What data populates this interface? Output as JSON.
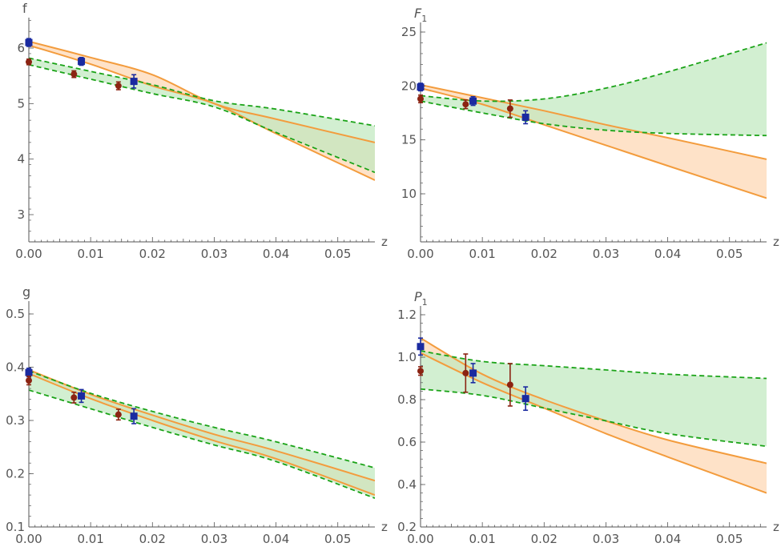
{
  "chart_data": [
    {
      "type": "line",
      "title": "",
      "ylabel": "f",
      "ylabel_italic": false,
      "xlabel": "z",
      "xlim": [
        0,
        0.056
      ],
      "ylim": [
        2.5,
        6.5
      ],
      "x_ticks": [
        "0.00",
        "0.01",
        "0.02",
        "0.03",
        "0.04",
        "0.05"
      ],
      "y_ticks": [
        3,
        4,
        5,
        6
      ],
      "y_tick_labels": [
        "3",
        "4",
        "5",
        "6"
      ],
      "bands": [
        {
          "style": "orange-solid",
          "upper": [
            [
              0,
              6.12
            ],
            [
              0.01,
              5.83
            ],
            [
              0.02,
              5.52
            ],
            [
              0.03,
              5.0
            ],
            [
              0.04,
              4.72
            ],
            [
              0.056,
              4.3
            ]
          ],
          "lower": [
            [
              0,
              6.05
            ],
            [
              0.01,
              5.71
            ],
            [
              0.02,
              5.32
            ],
            [
              0.03,
              5.0
            ],
            [
              0.04,
              4.46
            ],
            [
              0.056,
              3.62
            ]
          ]
        },
        {
          "style": "green-dashed",
          "upper": [
            [
              0,
              5.82
            ],
            [
              0.01,
              5.58
            ],
            [
              0.02,
              5.34
            ],
            [
              0.03,
              5.05
            ],
            [
              0.04,
              4.9
            ],
            [
              0.056,
              4.6
            ]
          ],
          "lower": [
            [
              0,
              5.7
            ],
            [
              0.01,
              5.44
            ],
            [
              0.02,
              5.18
            ],
            [
              0.03,
              4.94
            ],
            [
              0.04,
              4.48
            ],
            [
              0.056,
              3.76
            ]
          ]
        }
      ],
      "points": [
        {
          "marker": "square",
          "x": 0.0,
          "y": 6.1,
          "err": 0.07
        },
        {
          "marker": "square",
          "x": 0.0085,
          "y": 5.76,
          "err": 0.07
        },
        {
          "marker": "square",
          "x": 0.017,
          "y": 5.4,
          "err": 0.12
        },
        {
          "marker": "circle",
          "x": 0.0,
          "y": 5.75,
          "err": 0.05
        },
        {
          "marker": "circle",
          "x": 0.0073,
          "y": 5.53,
          "err": 0.06
        },
        {
          "marker": "circle",
          "x": 0.0145,
          "y": 5.32,
          "err": 0.07
        }
      ]
    },
    {
      "type": "line",
      "title": "",
      "ylabel": "F",
      "ylabel_sub": "1",
      "ylabel_italic": true,
      "xlabel": "z",
      "xlim": [
        0,
        0.056
      ],
      "ylim": [
        5,
        25.5
      ],
      "x_ticks": [
        "0.00",
        "0.01",
        "0.02",
        "0.03",
        "0.04",
        "0.05"
      ],
      "y_ticks": [
        10,
        15,
        20,
        25
      ],
      "y_tick_labels": [
        "10",
        "15",
        "20",
        "25"
      ],
      "bands": [
        {
          "style": "orange-solid",
          "upper": [
            [
              0,
              20.1
            ],
            [
              0.01,
              18.9
            ],
            [
              0.02,
              17.7
            ],
            [
              0.03,
              16.4
            ],
            [
              0.04,
              15.2
            ],
            [
              0.056,
              13.2
            ]
          ],
          "lower": [
            [
              0,
              19.8
            ],
            [
              0.01,
              18.3
            ],
            [
              0.02,
              16.4
            ],
            [
              0.03,
              14.5
            ],
            [
              0.04,
              12.6
            ],
            [
              0.056,
              9.6
            ]
          ]
        },
        {
          "style": "green-dashed",
          "upper": [
            [
              0,
              19.1
            ],
            [
              0.01,
              18.6
            ],
            [
              0.02,
              18.8
            ],
            [
              0.03,
              19.8
            ],
            [
              0.04,
              21.3
            ],
            [
              0.056,
              24.0
            ]
          ],
          "lower": [
            [
              0,
              18.6
            ],
            [
              0.01,
              17.5
            ],
            [
              0.02,
              16.5
            ],
            [
              0.03,
              15.9
            ],
            [
              0.04,
              15.6
            ],
            [
              0.056,
              15.4
            ]
          ]
        }
      ],
      "points": [
        {
          "marker": "square",
          "x": 0.0,
          "y": 19.9,
          "err": 0.35
        },
        {
          "marker": "square",
          "x": 0.0085,
          "y": 18.6,
          "err": 0.4
        },
        {
          "marker": "square",
          "x": 0.017,
          "y": 17.1,
          "err": 0.6
        },
        {
          "marker": "circle",
          "x": 0.0,
          "y": 18.8,
          "err": 0.35
        },
        {
          "marker": "circle",
          "x": 0.0073,
          "y": 18.3,
          "err": 0.4
        },
        {
          "marker": "circle",
          "x": 0.0145,
          "y": 17.9,
          "err": 0.8
        }
      ]
    },
    {
      "type": "line",
      "title": "",
      "ylabel": "g",
      "ylabel_italic": false,
      "xlabel": "z",
      "xlim": [
        0,
        0.056
      ],
      "ylim": [
        0.1,
        0.5
      ],
      "x_ticks": [
        "0.00",
        "0.01",
        "0.02",
        "0.03",
        "0.04",
        "0.05"
      ],
      "y_ticks": [
        0.1,
        0.2,
        0.3,
        0.4,
        0.5
      ],
      "y_tick_labels": [
        "0.1",
        "0.2",
        "0.3",
        "0.4",
        "0.5"
      ],
      "bands": [
        {
          "style": "orange-solid",
          "upper": [
            [
              0,
              0.395
            ],
            [
              0.01,
              0.349
            ],
            [
              0.02,
              0.31
            ],
            [
              0.03,
              0.274
            ],
            [
              0.04,
              0.243
            ],
            [
              0.056,
              0.187
            ]
          ],
          "lower": [
            [
              0,
              0.388
            ],
            [
              0.01,
              0.341
            ],
            [
              0.02,
              0.3
            ],
            [
              0.03,
              0.262
            ],
            [
              0.04,
              0.228
            ],
            [
              0.056,
              0.16
            ]
          ]
        },
        {
          "style": "green-dashed",
          "upper": [
            [
              0,
              0.393
            ],
            [
              0.01,
              0.351
            ],
            [
              0.02,
              0.317
            ],
            [
              0.03,
              0.287
            ],
            [
              0.04,
              0.26
            ],
            [
              0.056,
              0.211
            ]
          ],
          "lower": [
            [
              0,
              0.357
            ],
            [
              0.01,
              0.322
            ],
            [
              0.02,
              0.287
            ],
            [
              0.03,
              0.254
            ],
            [
              0.04,
              0.223
            ],
            [
              0.056,
              0.154
            ]
          ]
        }
      ],
      "points": [
        {
          "marker": "square",
          "x": 0.0,
          "y": 0.39,
          "err": 0.008
        },
        {
          "marker": "square",
          "x": 0.0085,
          "y": 0.346,
          "err": 0.012
        },
        {
          "marker": "square",
          "x": 0.017,
          "y": 0.308,
          "err": 0.014
        },
        {
          "marker": "circle",
          "x": 0.0,
          "y": 0.375,
          "err": 0.008
        },
        {
          "marker": "circle",
          "x": 0.0073,
          "y": 0.343,
          "err": 0.01
        },
        {
          "marker": "circle",
          "x": 0.0145,
          "y": 0.311,
          "err": 0.01
        }
      ]
    },
    {
      "type": "line",
      "title": "",
      "ylabel": "P",
      "ylabel_sub": "1",
      "ylabel_italic": true,
      "xlabel": "z",
      "xlim": [
        0,
        0.056
      ],
      "ylim": [
        0.2,
        1.2
      ],
      "x_ticks": [
        "0.00",
        "0.01",
        "0.02",
        "0.03",
        "0.04",
        "0.05"
      ],
      "y_ticks": [
        0.2,
        0.4,
        0.6,
        0.8,
        1.0,
        1.2
      ],
      "y_tick_labels": [
        "0.2",
        "0.4",
        "0.6",
        "0.8",
        "1.0",
        "1.2"
      ],
      "bands": [
        {
          "style": "orange-solid",
          "upper": [
            [
              0,
              1.09
            ],
            [
              0.01,
              0.92
            ],
            [
              0.02,
              0.8
            ],
            [
              0.03,
              0.7
            ],
            [
              0.04,
              0.61
            ],
            [
              0.056,
              0.5
            ]
          ],
          "lower": [
            [
              0,
              1.02
            ],
            [
              0.01,
              0.88
            ],
            [
              0.02,
              0.76
            ],
            [
              0.03,
              0.64
            ],
            [
              0.04,
              0.53
            ],
            [
              0.056,
              0.36
            ]
          ]
        },
        {
          "style": "green-dashed",
          "upper": [
            [
              0,
              1.03
            ],
            [
              0.01,
              0.98
            ],
            [
              0.02,
              0.96
            ],
            [
              0.03,
              0.94
            ],
            [
              0.04,
              0.92
            ],
            [
              0.056,
              0.9
            ]
          ],
          "lower": [
            [
              0,
              0.85
            ],
            [
              0.01,
              0.82
            ],
            [
              0.02,
              0.76
            ],
            [
              0.03,
              0.7
            ],
            [
              0.04,
              0.64
            ],
            [
              0.056,
              0.58
            ]
          ]
        }
      ],
      "points": [
        {
          "marker": "square",
          "x": 0.0,
          "y": 1.05,
          "err": 0.04
        },
        {
          "marker": "square",
          "x": 0.0085,
          "y": 0.925,
          "err": 0.045
        },
        {
          "marker": "square",
          "x": 0.017,
          "y": 0.805,
          "err": 0.055
        },
        {
          "marker": "circle",
          "x": 0.0,
          "y": 0.935,
          "err": 0.02
        },
        {
          "marker": "circle",
          "x": 0.0073,
          "y": 0.925,
          "err": 0.09
        },
        {
          "marker": "circle",
          "x": 0.0145,
          "y": 0.87,
          "err": 0.1
        }
      ]
    }
  ],
  "colors": {
    "axis": "#555555",
    "orange_line": "#f39c3d",
    "orange_fill": "#fdd8b6",
    "green_line": "#1aa317",
    "green_fill": "#bfe8bd",
    "overlap_fill": "#c2ba6e",
    "square_marker": "#1a2aa0",
    "circle_marker": "#8b2312"
  }
}
